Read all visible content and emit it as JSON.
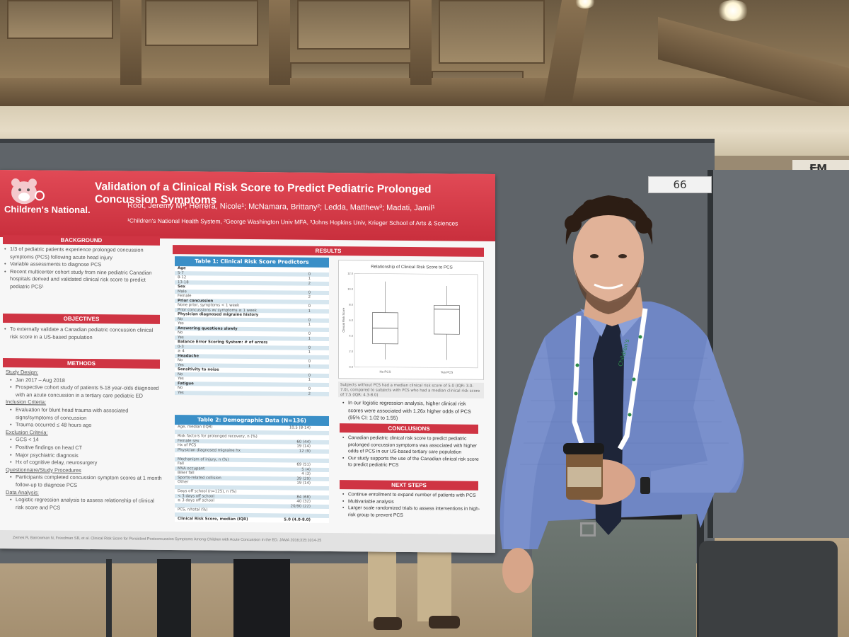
{
  "poster": {
    "logo_text": "Children's National.",
    "title": "Validation of a Clinical Risk Score to Predict Pediatric Prolonged Concussion Symptoms",
    "authors": "Root, Jeremy M¹; Herrera, Nicole¹; McNamara, Brittany²; Ledda, Matthew³; Madati, Jamil¹",
    "affiliations": "¹Children's National Health System, ²George Washington Univ MFA, ³Johns Hopkins Univ, Krieger School of Arts & Sciences",
    "background": {
      "heading": "BACKGROUND",
      "items": [
        "1/3 of pediatric patients experience prolonged concussion symptoms (PCS) following acute head injury",
        "Variable assessments to diagnose PCS",
        "Recent multicenter cohort study from nine pediatric Canadian hospitals derived and validated clinical risk score to predict pediatric PCS¹"
      ]
    },
    "objectives": {
      "heading": "OBJECTIVES",
      "items": [
        "To externally validate a Canadian pediatric concussion clinical risk score in a US-based population"
      ]
    },
    "methods": {
      "heading": "METHODS",
      "study_design_label": "Study Design:",
      "study_design": [
        "Jan 2017 – Aug 2018",
        "Prospective cohort study of patients 5-18 year-olds diagnosed with an acute concussion in a tertiary care pediatric ED"
      ],
      "inclusion_label": "Inclusion Criteria:",
      "inclusion": [
        "Evaluation for blunt head trauma with associated signs/symptoms of concussion",
        "Trauma occurred ≤ 48 hours ago"
      ],
      "exclusion_label": "Exclusion Criteria:",
      "exclusion": [
        "GCS < 14",
        "Positive findings on head CT",
        "Major psychiatric diagnosis",
        "Hx of cognitive delay, neurosurgery"
      ],
      "questionnaire_label": "Questionnaire/Study Procedures",
      "questionnaire": [
        "Participants completed concussion symptom scores at 1 month follow-up to diagnose PCS"
      ],
      "analysis_label": "Data Analysis:",
      "analysis": [
        "Logistic regression analysis to assess relationship of clinical risk score and PCS"
      ]
    },
    "results_heading": "RESULTS",
    "table1": {
      "title": "Table 1: Clinical Risk Score Predictors",
      "rows": [
        {
          "label": "Age",
          "value": "",
          "bold": true
        },
        {
          "label": "  5-7",
          "value": "0"
        },
        {
          "label": "  8-12",
          "value": "1"
        },
        {
          "label": "  13-18",
          "value": "2"
        },
        {
          "label": "Sex",
          "value": "",
          "bold": true
        },
        {
          "label": "  Male",
          "value": "0"
        },
        {
          "label": "  Female",
          "value": "2"
        },
        {
          "label": "Prior concussion",
          "value": "",
          "bold": true
        },
        {
          "label": "  None prior, symptoms < 1 week",
          "value": "0"
        },
        {
          "label": "  Prior concussions w/ symptoms ≥ 1 week",
          "value": "1"
        },
        {
          "label": "Physician diagnosed migraine history",
          "value": "",
          "bold": true
        },
        {
          "label": "  No",
          "value": "0"
        },
        {
          "label": "  Yes",
          "value": "1"
        },
        {
          "label": "Answering questions slowly",
          "value": "",
          "bold": true
        },
        {
          "label": "  No",
          "value": "0"
        },
        {
          "label": "  Yes",
          "value": "1"
        },
        {
          "label": "Balance Error Scoring System: # of errors",
          "value": "",
          "bold": true
        },
        {
          "label": "  0-3",
          "value": "0"
        },
        {
          "label": "  ≥ 4",
          "value": "1"
        },
        {
          "label": "Headache",
          "value": "",
          "bold": true
        },
        {
          "label": "  No",
          "value": "0"
        },
        {
          "label": "  Yes",
          "value": "1"
        },
        {
          "label": "Sensitivity to noise",
          "value": "",
          "bold": true
        },
        {
          "label": "  No",
          "value": "0"
        },
        {
          "label": "  Yes",
          "value": "1"
        },
        {
          "label": "Fatigue",
          "value": "",
          "bold": true
        },
        {
          "label": "  No",
          "value": "0"
        },
        {
          "label": "  Yes",
          "value": "2"
        }
      ]
    },
    "table2": {
      "title": "Table 2: Demographic Data (N=136)",
      "rows": [
        {
          "label": "Age, median (IQR)",
          "value": "10.5 (8-14)"
        },
        {
          "label": "",
          "value": ""
        },
        {
          "label": "Risk factors for prolonged recovery, n (%)",
          "value": ""
        },
        {
          "label": "  Female sex",
          "value": "60 (44)"
        },
        {
          "label": "  Hx of PCS",
          "value": "19 (14)"
        },
        {
          "label": "  Physician diagnosed migraine hx",
          "value": "12 (9)"
        },
        {
          "label": "",
          "value": ""
        },
        {
          "label": "Mechanism of injury, n (%)",
          "value": ""
        },
        {
          "label": "  Fall",
          "value": "69 (51)"
        },
        {
          "label": "  MVA occupant",
          "value": "5 (4)"
        },
        {
          "label": "  Biker fall",
          "value": "4 (3)"
        },
        {
          "label": "  Sports-related collision",
          "value": "39 (29)"
        },
        {
          "label": "  Other",
          "value": "19 (14)"
        },
        {
          "label": "",
          "value": ""
        },
        {
          "label": "Days off school (n=125), n (%)",
          "value": ""
        },
        {
          "label": "  < 3 days off school",
          "value": "84 (68)"
        },
        {
          "label": "  ≥ 3 days off school",
          "value": "40 (32)"
        },
        {
          "label": "",
          "value": "20/90 (22)"
        },
        {
          "label": "PCS, n/total (%)",
          "value": ""
        },
        {
          "label": "",
          "value": ""
        },
        {
          "label": "Clinical Risk Score, median (IQR)",
          "value": "5.0 (4.0-8.0)",
          "bold": true
        }
      ]
    },
    "results_caption": "Subjects without PCS had a median clinical risk score of 5.0 (IQR: 3.0-7.0), compared to subjects with PCS who had a median clinical risk score of 7.5 (IQR: 4.3-8.0)",
    "results_bullet": "In our logistic regression analysis, higher clinical risk scores were associated with 1.26x higher odds of PCS (95% CI: 1.02 to 1.55)",
    "conclusions": {
      "heading": "CONCLUSIONS",
      "items": [
        "Canadian pediatric clinical risk score to predict pediatric prolonged concussion symptoms was associated with higher odds of PCS in our US-based tertiary care population",
        "Our study supports the use of the Canadian clinical risk score to predict pediatric PCS"
      ]
    },
    "next_steps": {
      "heading": "NEXT STEPS",
      "items": [
        "Continue enrollment to expand number of patients with PCS",
        "Multivariable analysis",
        "Larger scale randomized trials to assess interventions in high-risk group to prevent PCS"
      ]
    },
    "reference": "Zemek R, Barrowman N, Freedman SB, et al. Clinical Risk Score for Persistent Postconcussion Symptoms Among Children with Acute Concussion in the ED. JAMA 2016;315:1014-25",
    "chart": {
      "title": "Relationship of Clinical Risk Score to PCS",
      "ylabel": "Clinical Risk Score",
      "yticks": [
        "0.0",
        "2.0",
        "4.0",
        "6.0",
        "8.0",
        "10.0",
        "12.0"
      ],
      "categories": [
        "No PCS",
        "Yes PCS"
      ]
    }
  },
  "chart_data": {
    "type": "box",
    "title": "Relationship of Clinical Risk Score to PCS",
    "ylabel": "Clinical Risk Score",
    "ylim": [
      0,
      12
    ],
    "categories": [
      "No PCS",
      "Yes PCS"
    ],
    "series": [
      {
        "min": 1.0,
        "q1": 3.0,
        "median": 5.0,
        "q3": 7.0,
        "max": 11.0
      },
      {
        "min": 1.0,
        "q1": 4.3,
        "median": 7.5,
        "q3": 8.0,
        "max": 10.5
      }
    ]
  },
  "scene": {
    "board_number": "66",
    "exit_sign": "EM",
    "lanyard_text": "Children's"
  }
}
